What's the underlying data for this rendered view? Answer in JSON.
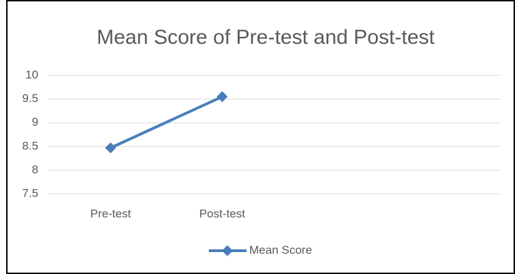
{
  "chart_data": {
    "type": "line",
    "title": "Mean Score of Pre-test and Post-test",
    "categories": [
      "Pre-test",
      "Post-test",
      null,
      null
    ],
    "series": [
      {
        "name": "Mean Score",
        "color": "#4a7ebb",
        "values": [
          8.47,
          9.55,
          null,
          null
        ]
      }
    ],
    "ylim": [
      7.5,
      10
    ],
    "yticks": [
      7.5,
      8,
      8.5,
      9,
      9.5,
      10
    ],
    "grid": true,
    "legend": "bottom"
  }
}
